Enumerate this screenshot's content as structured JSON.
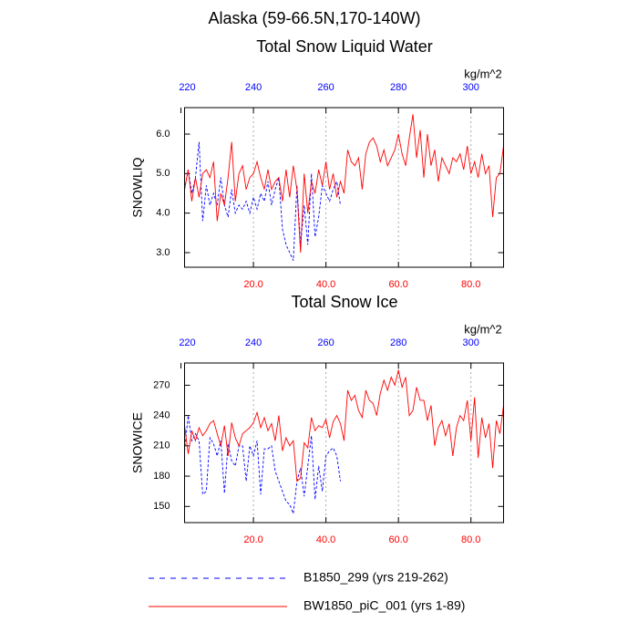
{
  "title": "Alaska (59-66.5N,170-140W)",
  "chart_data": [
    {
      "type": "line",
      "title": "Total Snow Liquid Water",
      "units": "kg/m^2",
      "ylabel": "SNOWLIQ",
      "xlim": [
        1,
        89
      ],
      "xticks": [
        {
          "value": 20,
          "label": "20.0"
        },
        {
          "value": 40,
          "label": "40.0"
        },
        {
          "value": 60,
          "label": "60.0"
        },
        {
          "value": 80,
          "label": "80.0"
        }
      ],
      "xtick_color": "#ff0000",
      "x2lim": [
        221,
        309
      ],
      "x2ticks": [
        220,
        240,
        260,
        280,
        300
      ],
      "x2tick_color": "#0000ff",
      "ylim": [
        2.63,
        6.67
      ],
      "yticks": [
        {
          "value": 3,
          "label": "3.0"
        },
        {
          "value": 4,
          "label": "4.0"
        },
        {
          "value": 5,
          "label": "5.0"
        },
        {
          "value": 6,
          "label": "6.0"
        }
      ],
      "xgrid": true,
      "series": [
        {
          "name": "B1850_299 (yrs 219-262)",
          "color": "#0000ff",
          "dashed": true,
          "x": [
            1,
            2,
            3,
            4,
            5,
            6,
            7,
            8,
            9,
            10,
            11,
            12,
            13,
            14,
            15,
            16,
            17,
            18,
            19,
            20,
            21,
            22,
            23,
            24,
            25,
            26,
            27,
            28,
            29,
            30,
            31,
            32,
            33,
            34,
            35,
            36,
            37,
            38,
            39,
            40,
            41,
            42,
            43,
            44
          ],
          "values": [
            4.6,
            5.1,
            4.5,
            4.9,
            5.8,
            3.8,
            4.7,
            4.2,
            4.5,
            4.2,
            4.9,
            4.2,
            3.9,
            4.6,
            4.0,
            4.2,
            4.1,
            4.3,
            4.0,
            4.4,
            4.1,
            4.5,
            4.3,
            4.8,
            4.2,
            4.6,
            4.9,
            3.6,
            3.2,
            3.0,
            2.8,
            4.7,
            3.2,
            4.2,
            3.2,
            5.0,
            3.4,
            3.9,
            4.7,
            4.5,
            4.3,
            4.6,
            4.8,
            4.2
          ]
        },
        {
          "name": "BW1850_piC_001 (yrs 1-89)",
          "color": "#ff0000",
          "dashed": false,
          "x": [
            1,
            2,
            3,
            4,
            5,
            6,
            7,
            8,
            9,
            10,
            11,
            12,
            13,
            14,
            15,
            16,
            17,
            18,
            19,
            20,
            21,
            22,
            23,
            24,
            25,
            26,
            27,
            28,
            29,
            30,
            31,
            32,
            33,
            34,
            35,
            36,
            37,
            38,
            39,
            40,
            41,
            42,
            43,
            44,
            45,
            46,
            47,
            48,
            49,
            50,
            51,
            52,
            53,
            54,
            55,
            56,
            57,
            58,
            59,
            60,
            61,
            62,
            63,
            64,
            65,
            66,
            67,
            68,
            69,
            70,
            71,
            72,
            73,
            74,
            75,
            76,
            77,
            78,
            79,
            80,
            81,
            82,
            83,
            84,
            85,
            86,
            87,
            88,
            89
          ],
          "values": [
            4.6,
            5.1,
            4.3,
            4.9,
            4.4,
            5.0,
            5.1,
            4.9,
            5.3,
            3.8,
            4.5,
            4.2,
            4.9,
            5.8,
            4.3,
            5.0,
            5.2,
            4.6,
            4.9,
            5.0,
            5.3,
            4.9,
            4.6,
            5.1,
            4.6,
            4.8,
            4.9,
            4.3,
            5.1,
            4.4,
            5.2,
            4.6,
            3.0,
            5.0,
            4.0,
            4.8,
            4.5,
            5.1,
            4.7,
            5.3,
            4.6,
            5.0,
            4.4,
            4.8,
            4.5,
            5.6,
            5.3,
            5.2,
            5.4,
            4.6,
            5.5,
            5.8,
            5.9,
            5.7,
            5.3,
            5.6,
            5.2,
            5.4,
            5.6,
            6.0,
            5.5,
            5.2,
            5.9,
            6.5,
            5.4,
            6.1,
            4.9,
            6.0,
            5.2,
            5.6,
            4.8,
            5.4,
            5.2,
            5.0,
            5.4,
            5.3,
            5.5,
            5.1,
            5.7,
            5.0,
            5.3,
            4.9,
            5.5,
            5.0,
            5.2,
            3.9,
            4.9,
            5.0,
            5.7
          ]
        }
      ]
    },
    {
      "type": "line",
      "title": "Total Snow Ice",
      "units": "kg/m^2",
      "ylabel": "SNOWICE",
      "xlim": [
        1,
        89
      ],
      "xticks": [
        {
          "value": 20,
          "label": "20.0"
        },
        {
          "value": 40,
          "label": "40.0"
        },
        {
          "value": 60,
          "label": "60.0"
        },
        {
          "value": 80,
          "label": "80.0"
        }
      ],
      "xtick_color": "#ff0000",
      "x2lim": [
        221,
        309
      ],
      "x2ticks": [
        220,
        240,
        260,
        280,
        300
      ],
      "x2tick_color": "#0000ff",
      "ylim": [
        134,
        292
      ],
      "yticks": [
        150,
        180,
        210,
        240,
        270
      ],
      "xgrid": true,
      "series": [
        {
          "color": "#0000ff",
          "dashed": true,
          "x": [
            1,
            2,
            3,
            4,
            5,
            6,
            7,
            8,
            9,
            10,
            11,
            12,
            13,
            14,
            15,
            16,
            17,
            18,
            19,
            20,
            21,
            22,
            23,
            24,
            25,
            26,
            27,
            28,
            29,
            30,
            31,
            32,
            33,
            34,
            35,
            36,
            37,
            38,
            39,
            40,
            41,
            42,
            43,
            44
          ],
          "values": [
            205,
            240,
            215,
            222,
            215,
            162,
            165,
            218,
            212,
            200,
            215,
            163,
            212,
            195,
            190,
            210,
            210,
            175,
            210,
            200,
            215,
            162,
            207,
            207,
            210,
            185,
            175,
            165,
            155,
            152,
            143,
            175,
            188,
            160,
            190,
            220,
            157,
            190,
            165,
            200,
            205,
            208,
            200,
            175
          ]
        },
        {
          "color": "#ff0000",
          "dashed": false,
          "x": [
            1,
            2,
            3,
            4,
            5,
            6,
            7,
            8,
            9,
            10,
            11,
            12,
            13,
            14,
            15,
            16,
            17,
            18,
            19,
            20,
            21,
            22,
            23,
            24,
            25,
            26,
            27,
            28,
            29,
            30,
            31,
            32,
            33,
            34,
            35,
            36,
            37,
            38,
            39,
            40,
            41,
            42,
            43,
            44,
            45,
            46,
            47,
            48,
            49,
            50,
            51,
            52,
            53,
            54,
            55,
            56,
            57,
            58,
            59,
            60,
            61,
            62,
            63,
            64,
            65,
            66,
            67,
            68,
            69,
            70,
            71,
            72,
            73,
            74,
            75,
            76,
            77,
            78,
            79,
            80,
            81,
            82,
            83,
            84,
            85,
            86,
            87,
            88,
            89
          ],
          "values": [
            230,
            202,
            225,
            215,
            228,
            220,
            225,
            232,
            235,
            222,
            210,
            230,
            200,
            233,
            218,
            210,
            222,
            225,
            228,
            233,
            243,
            228,
            238,
            225,
            232,
            215,
            240,
            205,
            218,
            210,
            215,
            175,
            178,
            213,
            208,
            238,
            225,
            230,
            228,
            236,
            218,
            234,
            240,
            232,
            215,
            265,
            255,
            260,
            245,
            238,
            265,
            255,
            252,
            240,
            262,
            275,
            265,
            278,
            270,
            285,
            268,
            278,
            240,
            245,
            268,
            255,
            255,
            235,
            250,
            210,
            228,
            235,
            220,
            232,
            200,
            228,
            240,
            235,
            255,
            215,
            258,
            198,
            238,
            218,
            232,
            188,
            235,
            222,
            250
          ]
        }
      ]
    }
  ]
}
